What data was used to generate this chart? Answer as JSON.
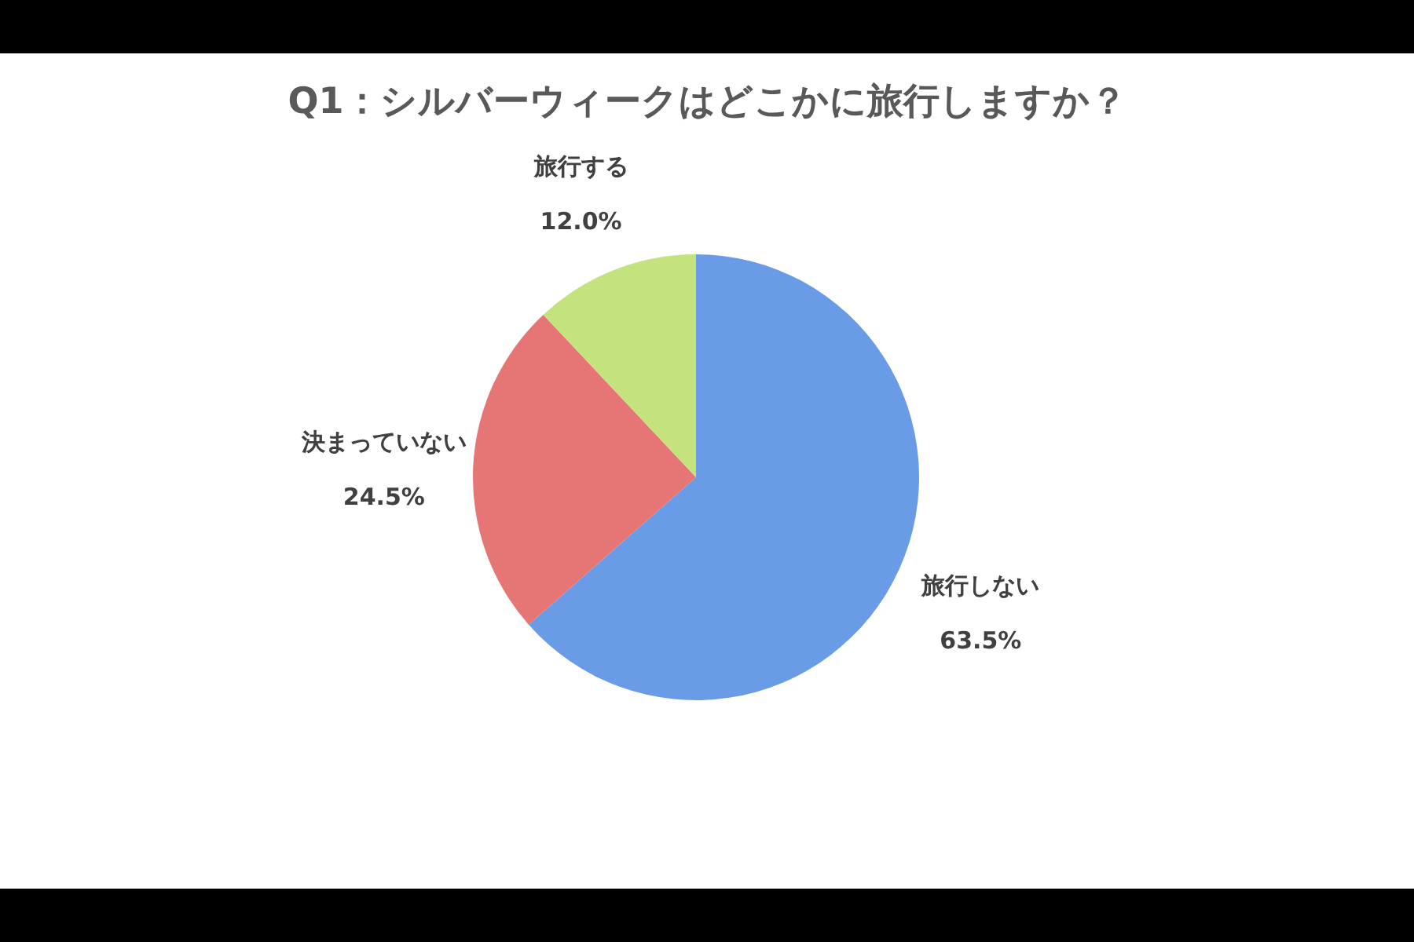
{
  "chart_data": {
    "type": "pie",
    "title": "Q1：シルバーウィークはどこかに旅行しますか？",
    "categories": [
      "旅行しない",
      "決まっていない",
      "旅行する"
    ],
    "values": [
      63.5,
      24.5,
      12.0
    ],
    "value_labels": [
      "63.5%",
      "24.5%",
      "12.0%"
    ],
    "colors": [
      "#6a9be6",
      "#e67575",
      "#c4e27e"
    ],
    "legend": false
  }
}
